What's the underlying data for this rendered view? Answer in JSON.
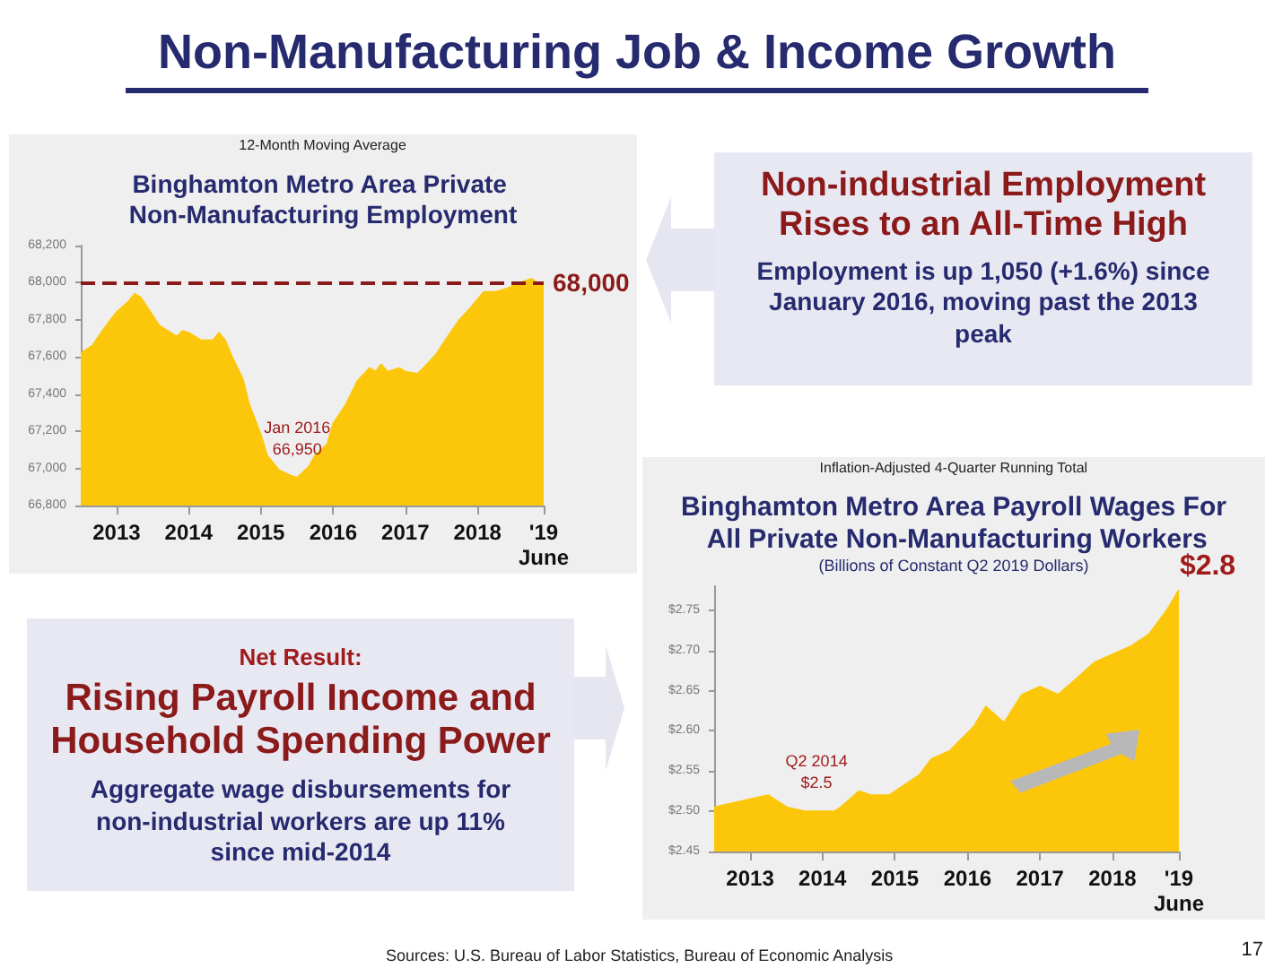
{
  "chart_data": [
    {
      "type": "other",
      "title": "Non-Manufacturing Job & Income Growth",
      "annotations": [
        "Sources:  U.S. Bureau of Labor Statistics, Bureau of Economic Analysis",
        "17"
      ]
    },
    {
      "type": "area",
      "subtitle": "12-Month Moving Average",
      "title": "Binghamton Metro Area Private Non-Manufacturing Employment",
      "x": [
        "2013-01",
        "2013-03",
        "2013-04",
        "2013-06",
        "2013-07",
        "2013-09",
        "2013-10",
        "2013-11",
        "2013-12",
        "2014-02",
        "2014-04",
        "2014-05",
        "2014-06",
        "2014-07",
        "2014-09",
        "2014-11",
        "2014-12",
        "2015-01",
        "2015-02",
        "2015-04",
        "2015-05",
        "2015-07",
        "2015-08",
        "2015-10",
        "2015-12",
        "2016-01",
        "2016-03",
        "2016-04",
        "2016-06",
        "2016-07",
        "2016-09",
        "2016-11",
        "2017-01",
        "2017-02",
        "2017-03",
        "2017-04",
        "2017-06",
        "2017-07",
        "2017-09",
        "2017-10",
        "2017-12",
        "2018-02",
        "2018-04",
        "2018-06",
        "2018-08",
        "2018-10",
        "2018-12",
        "2019-02",
        "2019-04",
        "2019-06"
      ],
      "series": [
        {
          "color": "#fcc70a",
          "values": [
            67620,
            67660,
            67710,
            67800,
            67840,
            67900,
            67940,
            67920,
            67870,
            67770,
            67730,
            67710,
            67740,
            67730,
            67690,
            67690,
            67730,
            67690,
            67610,
            67480,
            67350,
            67180,
            67070,
            66990,
            66960,
            66950,
            67010,
            67070,
            67130,
            67240,
            67340,
            67470,
            67540,
            67520,
            67560,
            67520,
            67540,
            67520,
            67510,
            67540,
            67610,
            67710,
            67800,
            67870,
            67950,
            67950,
            67970,
            68000,
            68020,
            67980
          ]
        }
      ],
      "xlim": [
        "2013-01",
        "2019-06"
      ],
      "xticks": [
        {
          "value": "2013-07",
          "label": "2013"
        },
        {
          "value": "2014-07",
          "label": "2014"
        },
        {
          "value": "2015-07",
          "label": "2015"
        },
        {
          "value": "2016-07",
          "label": "2016"
        },
        {
          "value": "2017-07",
          "label": "2017"
        },
        {
          "value": "2018-07",
          "label": "2018"
        },
        {
          "value": "2019-06",
          "label": "'19\nJune"
        }
      ],
      "ylim": [
        66800,
        68200
      ],
      "yticks": [
        {
          "value": 66800,
          "label": "66,800"
        },
        {
          "value": 67000,
          "label": "67,000"
        },
        {
          "value": 67200,
          "label": "67,200"
        },
        {
          "value": 67400,
          "label": "67,400"
        },
        {
          "value": 67600,
          "label": "67,600"
        },
        {
          "value": 67800,
          "label": "67,800"
        },
        {
          "value": 68000,
          "label": "68,000"
        },
        {
          "value": 68200,
          "label": "68,200"
        }
      ],
      "ref_lines": [
        {
          "axis": "y",
          "value": 68000,
          "label": "68,000",
          "color": "#8b1a1a",
          "line_style": "dashed"
        }
      ],
      "annotations": [
        {
          "text": "Jan 2016\n66,950",
          "x": "2016-01",
          "y": 66950
        }
      ]
    },
    {
      "type": "other",
      "title": "Non-industrial Employment Rises to an All-Time High",
      "annotations": [
        "Employment is up 1,050 (+1.6%) since January 2016, moving past the 2013 peak"
      ]
    },
    {
      "type": "other",
      "subtitle": "Net Result:",
      "title": "Rising Payroll Income and Household Spending Power",
      "annotations": [
        "Aggregate wage disbursements for non-industrial workers are up 11% since mid-2014"
      ]
    },
    {
      "type": "area",
      "subtitle": "Inflation-Adjusted 4-Quarter Running Total",
      "title": "Binghamton Metro Area Payroll Wages For All Private Non-Manufacturing Workers",
      "x": [
        "2013-01",
        "2013-04",
        "2013-07",
        "2013-10",
        "2013-12",
        "2014-01",
        "2014-04",
        "2014-06",
        "2014-09",
        "2014-10",
        "2015-01",
        "2015-03",
        "2015-06",
        "2015-09",
        "2015-11",
        "2016-01",
        "2016-04",
        "2016-06",
        "2016-08",
        "2016-10",
        "2017-01",
        "2017-04",
        "2017-07",
        "2017-10",
        "2018-01",
        "2018-04",
        "2018-07",
        "2018-10",
        "2019-01",
        "2019-04",
        "2019-06"
      ],
      "series": [
        {
          "color": "#fcc70a",
          "values": [
            2.505,
            2.51,
            2.515,
            2.52,
            2.51,
            2.505,
            2.5,
            2.5,
            2.5,
            2.505,
            2.525,
            2.52,
            2.52,
            2.535,
            2.545,
            2.565,
            2.575,
            2.59,
            2.605,
            2.63,
            2.61,
            2.645,
            2.655,
            2.645,
            2.665,
            2.685,
            2.695,
            2.705,
            2.72,
            2.75,
            2.775
          ]
        }
      ],
      "xlim": [
        "2013-01",
        "2019-06"
      ],
      "xticks": [
        {
          "value": "2013-07",
          "label": "2013"
        },
        {
          "value": "2014-07",
          "label": "2014"
        },
        {
          "value": "2015-07",
          "label": "2015"
        },
        {
          "value": "2016-07",
          "label": "2016"
        },
        {
          "value": "2017-07",
          "label": "2017"
        },
        {
          "value": "2018-07",
          "label": "2018"
        },
        {
          "value": "2019-06",
          "label": "'19\nJune"
        }
      ],
      "ylim": [
        2.45,
        2.78
      ],
      "yticks": [
        {
          "value": 2.45,
          "label": "$2.45"
        },
        {
          "value": 2.5,
          "label": "$2.50"
        },
        {
          "value": 2.55,
          "label": "$2.55"
        },
        {
          "value": 2.6,
          "label": "$2.60"
        },
        {
          "value": 2.65,
          "label": "$2.65"
        },
        {
          "value": 2.7,
          "label": "$2.70"
        },
        {
          "value": 2.75,
          "label": "$2.75"
        }
      ],
      "annotations": [
        "(Billions of Constant Q2 2019 Dollars)",
        {
          "text": "Q2 2014\n$2.5",
          "x": "2014-06",
          "y": 2.5
        },
        {
          "text": "$2.8",
          "x": "2019-06",
          "y": 2.775
        }
      ]
    }
  ]
}
